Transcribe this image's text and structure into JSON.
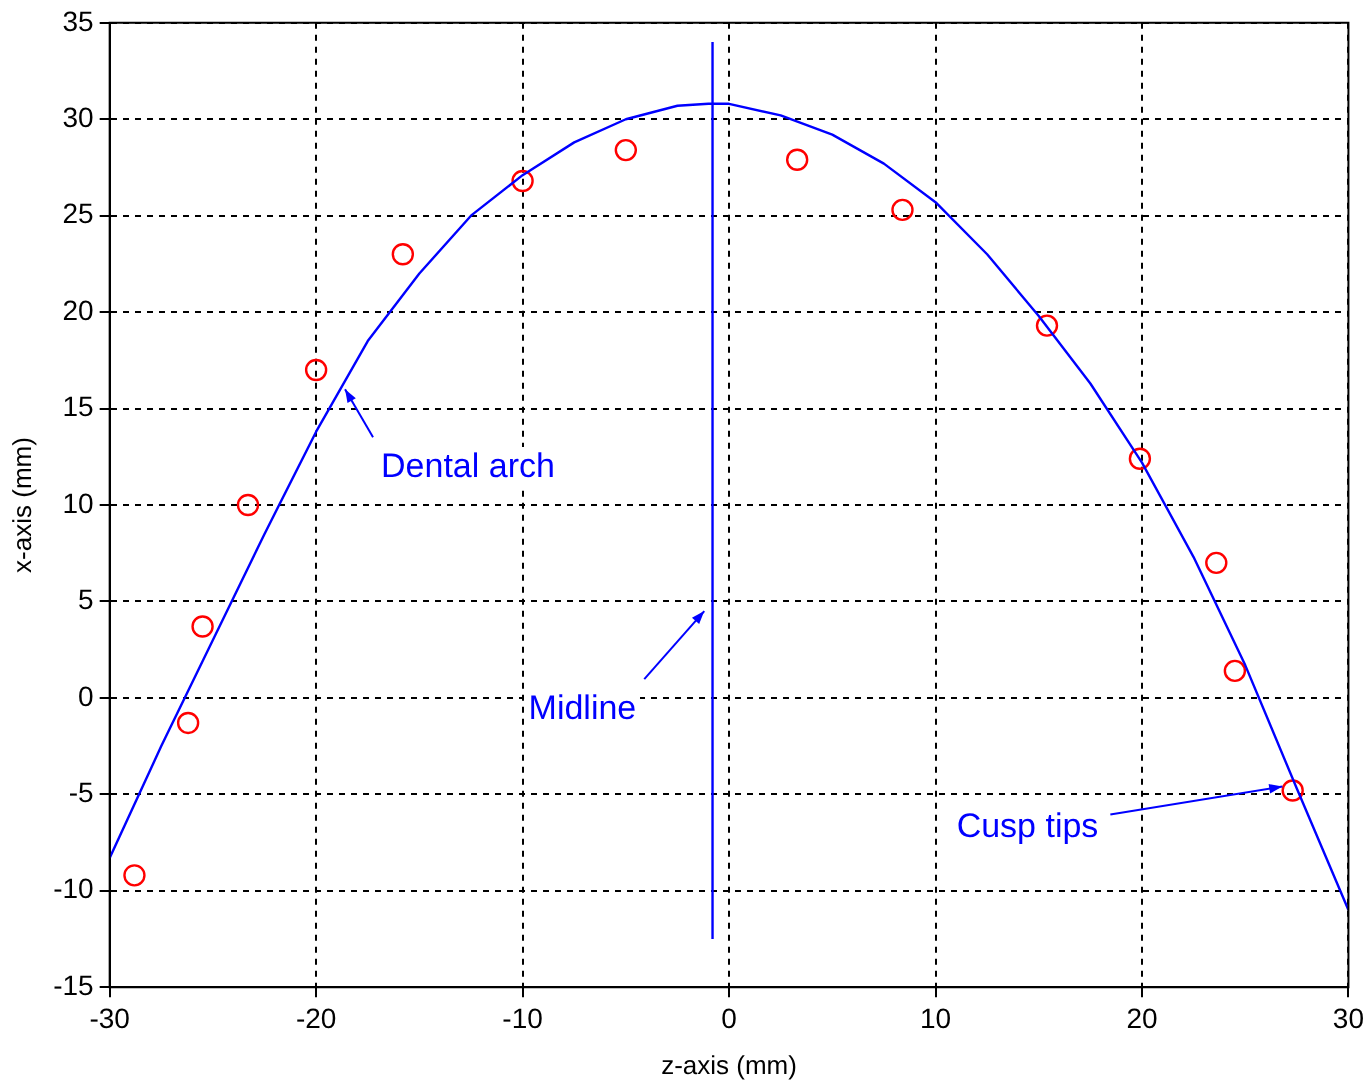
{
  "chart_data": {
    "type": "scatter",
    "xlabel": "z-axis (mm)",
    "ylabel": "x-axis (mm)",
    "xlim": [
      -30,
      30
    ],
    "xticks": [
      -30,
      -20,
      -10,
      0,
      10,
      20,
      30
    ],
    "ylim": [
      -15,
      35
    ],
    "yticks": [
      -15,
      -10,
      -5,
      0,
      5,
      10,
      15,
      20,
      25,
      30,
      35
    ],
    "grid": true,
    "legend": false,
    "series": [
      {
        "type": "line",
        "color": "#0000ff",
        "marker": "none",
        "x": [
          -30,
          -27.5,
          -25,
          -22.5,
          -20,
          -17.5,
          -15,
          -12.5,
          -10,
          -7.5,
          -5,
          -2.5,
          -1,
          0,
          2.5,
          5,
          7.5,
          10,
          12.5,
          15,
          17.5,
          20,
          22.5,
          25,
          27.5,
          30
        ],
        "values": [
          -8.3,
          -2.5,
          3,
          8.5,
          13.8,
          18.5,
          22,
          25,
          27.1,
          28.8,
          30,
          30.7,
          30.8,
          30.8,
          30.2,
          29.2,
          27.7,
          25.7,
          23,
          19.8,
          16.3,
          12.2,
          7.3,
          1.7,
          -4.7,
          -11
        ]
      },
      {
        "type": "line",
        "color": "#0000ff",
        "marker": "none",
        "x": [
          -0.8,
          -0.8
        ],
        "values": [
          -12.5,
          34
        ]
      },
      {
        "type": "scatter",
        "color": "#ff0000",
        "marker": "circle",
        "x": [
          -28.8,
          -26.2,
          -25.5,
          -23.3,
          -20,
          -15.8,
          -10,
          -5,
          3.3,
          8.4,
          15.4,
          19.9,
          23.6,
          24.5,
          27.3
        ],
        "values": [
          -9.2,
          -1.3,
          3.7,
          10,
          17,
          23,
          26.8,
          28.4,
          27.9,
          25.3,
          19.3,
          12.4,
          7,
          1.4,
          -4.8
        ]
      }
    ],
    "annotations": [
      {
        "text": "Dental arch",
        "x": -18.6,
        "y": 16
      },
      {
        "text": "Midline",
        "x": -1.2,
        "y": 4.5
      },
      {
        "text": "Cusp tips",
        "x": 26.8,
        "y": -4.6
      }
    ]
  }
}
